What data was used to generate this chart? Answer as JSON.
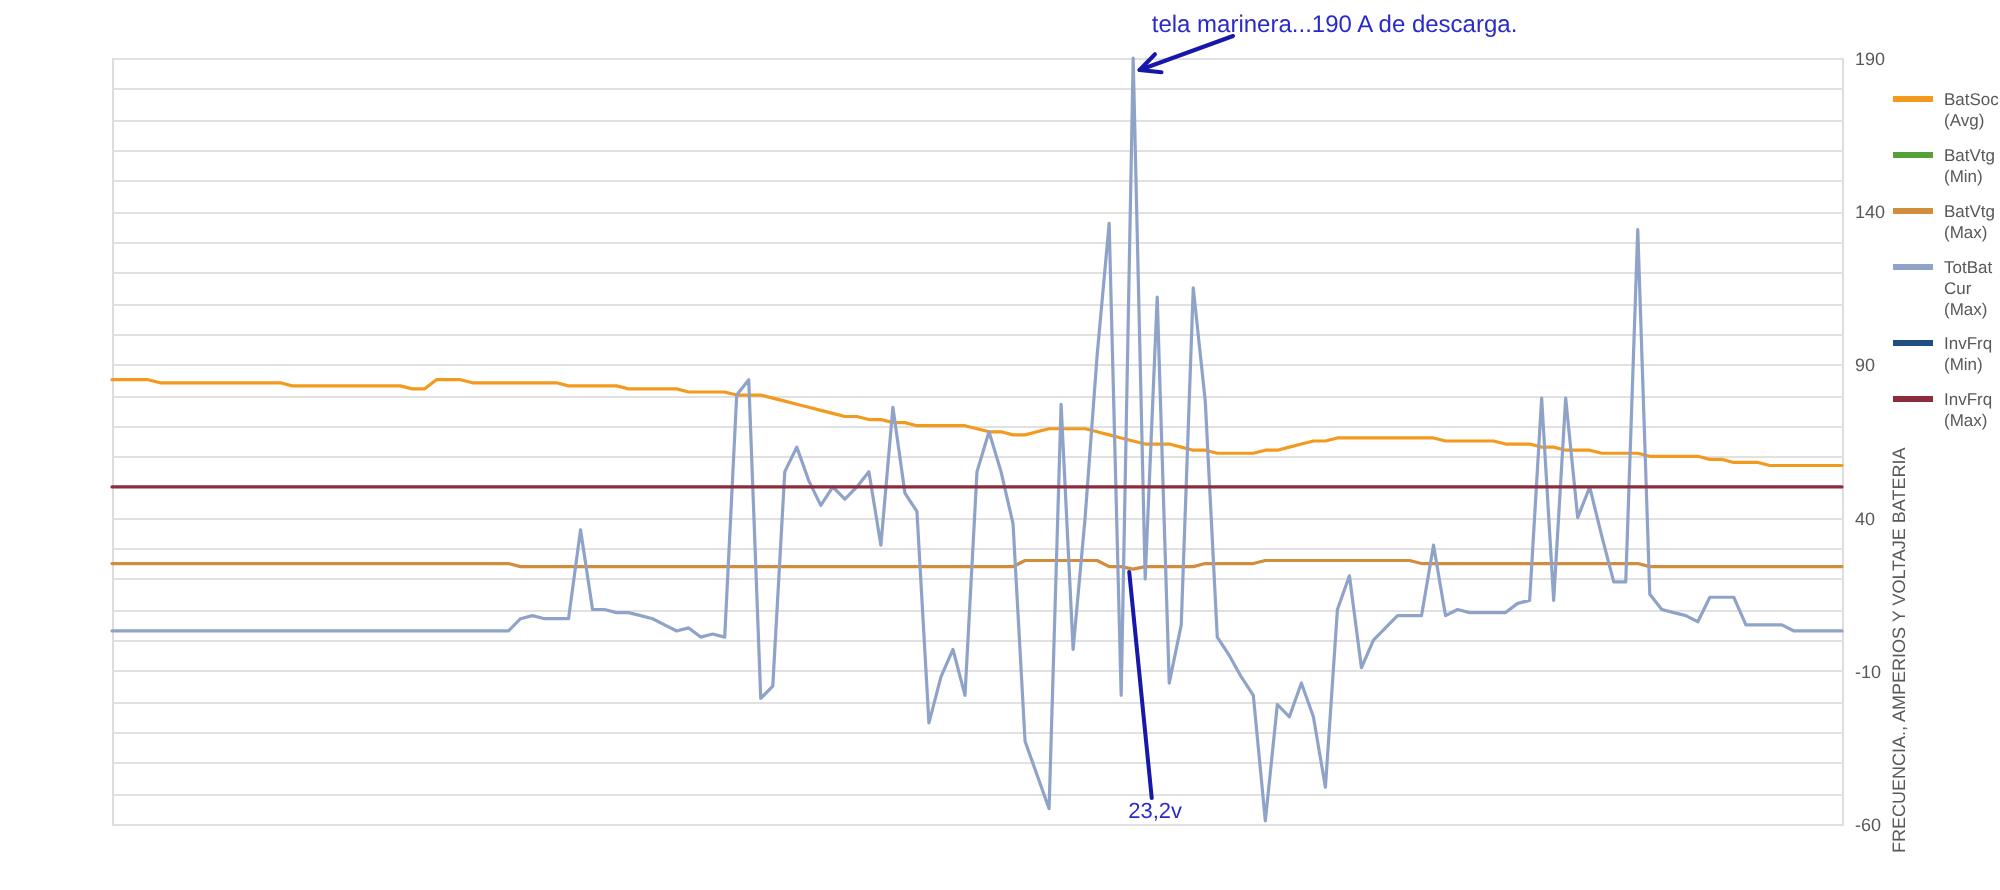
{
  "chart_data": {
    "type": "line",
    "ylabel": "FRECUENCIA., AMPERIOS Y VOLTAJE BATERIA",
    "annotations": [
      "tela marinera...190 A de descarga.",
      "23,2v"
    ],
    "categories": [
      null,
      null,
      null,
      null,
      null,
      null,
      null,
      null,
      null,
      null,
      null,
      null,
      null,
      null,
      null,
      null,
      null,
      null,
      null,
      null,
      null,
      null,
      null,
      null,
      null,
      null,
      null,
      null,
      null,
      null,
      null,
      null,
      null,
      null,
      null,
      null,
      null,
      null,
      null,
      null,
      null,
      null,
      null,
      null,
      null,
      null,
      null,
      null,
      null,
      null,
      null,
      null,
      null,
      null,
      null,
      null,
      null,
      null,
      null,
      null,
      null,
      null,
      null,
      null,
      null,
      null,
      null,
      null,
      null,
      null,
      null,
      null,
      null,
      null,
      null,
      null,
      null,
      null,
      null,
      null,
      null,
      null,
      null,
      null,
      null,
      null,
      null,
      null,
      null,
      null,
      null,
      null,
      null,
      null,
      null,
      null,
      null,
      null,
      null,
      null,
      null,
      null,
      null,
      null,
      null,
      null,
      null,
      null,
      null,
      null,
      null,
      null,
      null,
      null,
      null,
      null,
      null,
      null,
      null,
      null,
      null,
      null,
      null,
      null,
      null,
      null,
      null,
      null,
      null,
      null,
      null,
      null,
      null,
      null,
      null,
      null,
      null,
      null,
      null,
      null,
      null,
      null,
      null,
      null,
      null
    ],
    "ylim": [
      -60,
      190
    ],
    "yticks": [
      -60,
      {
        "value": -50,
        "label": null
      },
      {
        "value": -40,
        "label": null
      },
      {
        "value": -30,
        "label": null
      },
      {
        "value": -20,
        "label": null
      },
      -10,
      {
        "value": 0,
        "label": null
      },
      {
        "value": 10,
        "label": null
      },
      {
        "value": 20,
        "label": null
      },
      {
        "value": 30,
        "label": null
      },
      40,
      {
        "value": 60,
        "label": null
      },
      {
        "value": 70,
        "label": null
      },
      {
        "value": 80,
        "label": null
      },
      90,
      {
        "value": 100,
        "label": null
      },
      {
        "value": 110,
        "label": null
      },
      {
        "value": 120,
        "label": null
      },
      {
        "value": 130,
        "label": null
      },
      140,
      {
        "value": 150,
        "label": null
      },
      {
        "value": 160,
        "label": null
      },
      {
        "value": 170,
        "label": null
      },
      {
        "value": 180,
        "label": null
      },
      190
    ],
    "grid": "y",
    "legend": "right",
    "tick_labels": "y",
    "series": [
      {
        "name": "BatSoc (Avg)",
        "color": "#f39a1e",
        "values": [
          85,
          85,
          85,
          85,
          84,
          84,
          84,
          84,
          84,
          84,
          84,
          84,
          84,
          84,
          84,
          83,
          83,
          83,
          83,
          83,
          83,
          83,
          83,
          83,
          83,
          82,
          82,
          85,
          85,
          85,
          84,
          84,
          84,
          84,
          84,
          84,
          84,
          84,
          83,
          83,
          83,
          83,
          83,
          82,
          82,
          82,
          82,
          82,
          81,
          81,
          81,
          81,
          80,
          80,
          80,
          79,
          78,
          77,
          76,
          75,
          74,
          73,
          73,
          72,
          72,
          71,
          71,
          70,
          70,
          70,
          70,
          70,
          69,
          68,
          68,
          67,
          67,
          68,
          69,
          69,
          69,
          69,
          68,
          67,
          66,
          65,
          64,
          64,
          64,
          63,
          62,
          62,
          61,
          61,
          61,
          61,
          62,
          62,
          63,
          64,
          65,
          65,
          66,
          66,
          66,
          66,
          66,
          66,
          66,
          66,
          66,
          65,
          65,
          65,
          65,
          65,
          64,
          64,
          64,
          63,
          63,
          62,
          62,
          62,
          61,
          61,
          61,
          61,
          60,
          60,
          60,
          60,
          60,
          59,
          59,
          58,
          58,
          58,
          57,
          57,
          57,
          57,
          57,
          57,
          57
        ]
      },
      {
        "name": "BatVtg (Min)",
        "color": "#54a13a",
        "values": [
          null,
          null,
          null,
          null,
          null,
          null,
          null,
          null,
          null,
          null,
          null,
          null,
          null,
          null,
          null,
          null,
          null,
          null,
          null,
          null,
          null,
          null,
          null,
          null,
          null,
          null,
          null,
          null,
          null,
          null,
          null,
          null,
          null,
          null,
          null,
          null,
          null,
          null,
          null,
          null,
          null,
          null,
          null,
          null,
          null,
          null,
          null,
          null,
          null,
          null,
          null,
          null,
          null,
          null,
          null,
          null,
          null,
          null,
          null,
          null,
          null,
          null,
          null,
          null,
          null,
          null,
          null,
          null,
          null,
          null,
          null,
          null,
          null,
          null,
          null,
          null,
          null,
          null,
          null,
          null,
          null,
          null,
          null,
          null,
          null,
          null,
          null,
          null,
          null,
          null,
          null,
          null,
          null,
          null,
          null,
          null,
          null,
          null,
          null,
          null,
          null,
          null,
          null,
          null,
          null,
          null,
          null,
          null,
          null,
          null,
          null,
          null,
          null,
          null,
          null,
          null,
          null,
          null,
          null,
          null,
          null,
          null,
          null,
          null,
          null,
          null,
          null,
          null,
          null,
          null,
          null,
          null,
          null,
          null,
          null,
          null,
          null,
          null,
          null,
          null,
          null,
          null,
          null,
          null,
          null
        ]
      },
      {
        "name": "BatVtg (Max)",
        "color": "#d18c3c",
        "values": [
          25,
          25,
          25,
          25,
          25,
          25,
          25,
          25,
          25,
          25,
          25,
          25,
          25,
          25,
          25,
          25,
          25,
          25,
          25,
          25,
          25,
          25,
          25,
          25,
          25,
          25,
          25,
          25,
          25,
          25,
          25,
          25,
          25,
          25,
          24,
          24,
          24,
          24,
          24,
          24,
          24,
          24,
          24,
          24,
          24,
          24,
          24,
          24,
          24,
          24,
          24,
          24,
          24,
          24,
          24,
          24,
          24,
          24,
          24,
          24,
          24,
          24,
          24,
          24,
          24,
          24,
          24,
          24,
          24,
          24,
          24,
          24,
          24,
          24,
          24,
          24,
          26,
          26,
          26,
          26,
          26,
          26,
          26,
          24,
          24,
          23.2,
          24,
          24,
          24,
          24,
          24,
          25,
          25,
          25,
          25,
          25,
          26,
          26,
          26,
          26,
          26,
          26,
          26,
          26,
          26,
          26,
          26,
          26,
          26,
          25,
          25,
          25,
          25,
          25,
          25,
          25,
          25,
          25,
          25,
          25,
          25,
          25,
          25,
          25,
          25,
          25,
          25,
          25,
          24,
          24,
          24,
          24,
          24,
          24,
          24,
          24,
          24,
          24,
          24,
          24,
          24,
          24,
          24,
          24,
          24
        ]
      },
      {
        "name": "TotBat Cur (Max)",
        "color": "#8fa3c9",
        "values": [
          3,
          3,
          3,
          3,
          3,
          3,
          3,
          3,
          3,
          3,
          3,
          3,
          3,
          3,
          3,
          3,
          3,
          3,
          3,
          3,
          3,
          3,
          3,
          3,
          3,
          3,
          3,
          3,
          3,
          3,
          3,
          3,
          3,
          3,
          7,
          8,
          7,
          7,
          7,
          36,
          10,
          10,
          9,
          9,
          8,
          7,
          5,
          3,
          4,
          1,
          2,
          1,
          80,
          85,
          -19,
          -15,
          55,
          63,
          52,
          44,
          50,
          46,
          50,
          55,
          31,
          76,
          48,
          42,
          -27,
          -12,
          -3,
          -18,
          55,
          68,
          55,
          38,
          -33,
          -44,
          -55,
          77,
          -3,
          40,
          93,
          136,
          -18,
          190,
          20,
          112,
          -14,
          5,
          115,
          78,
          1,
          -5,
          -12,
          -18,
          -59,
          -21,
          -25,
          -14,
          -25,
          -48,
          10,
          21,
          -9,
          0,
          4,
          8,
          8,
          8,
          31,
          8,
          10,
          9,
          9,
          9,
          9,
          12,
          13,
          79,
          13,
          79,
          40,
          50,
          34,
          19,
          19,
          134,
          15,
          10,
          9,
          8,
          6,
          14,
          14,
          14,
          5,
          5,
          5,
          5,
          3,
          3,
          3,
          3,
          3
        ]
      },
      {
        "name": "InvFrq (Min)",
        "color": "#1f4f7f",
        "values": [
          null,
          null,
          null,
          null,
          null,
          null,
          null,
          null,
          null,
          null,
          null,
          null,
          null,
          null,
          null,
          null,
          null,
          null,
          null,
          null,
          null,
          null,
          null,
          null,
          null,
          null,
          null,
          null,
          null,
          null,
          null,
          null,
          null,
          null,
          null,
          null,
          null,
          null,
          null,
          null,
          null,
          null,
          null,
          null,
          null,
          null,
          null,
          null,
          null,
          null,
          null,
          null,
          null,
          null,
          null,
          null,
          null,
          null,
          null,
          null,
          null,
          null,
          null,
          null,
          null,
          null,
          null,
          null,
          null,
          null,
          null,
          null,
          null,
          null,
          null,
          null,
          null,
          null,
          null,
          null,
          null,
          null,
          null,
          null,
          null,
          null,
          null,
          null,
          null,
          null,
          null,
          null,
          null,
          null,
          null,
          null,
          null,
          null,
          null,
          null,
          null,
          null,
          null,
          null,
          null,
          null,
          null,
          null,
          null,
          null,
          null,
          null,
          null,
          null,
          null,
          null,
          null,
          null,
          null,
          null,
          null,
          null,
          null,
          null,
          null,
          null,
          null,
          null,
          null,
          null,
          null,
          null,
          null,
          null,
          null,
          null,
          null,
          null,
          null,
          null,
          null,
          null,
          null,
          null,
          null
        ]
      },
      {
        "name": "InvFrq (Max)",
        "color": "#8c2d3e",
        "values": [
          50,
          50,
          50,
          50,
          50,
          50,
          50,
          50,
          50,
          50,
          50,
          50,
          50,
          50,
          50,
          50,
          50,
          50,
          50,
          50,
          50,
          50,
          50,
          50,
          50,
          50,
          50,
          50,
          50,
          50,
          50,
          50,
          50,
          50,
          50,
          50,
          50,
          50,
          50,
          50,
          50,
          50,
          50,
          50,
          50,
          50,
          50,
          50,
          50,
          50,
          50,
          50,
          50,
          50,
          50,
          50,
          50,
          50,
          50,
          50,
          50,
          50,
          50,
          50,
          50,
          50,
          50,
          50,
          50,
          50,
          50,
          50,
          50,
          50,
          50,
          50,
          50,
          50,
          50,
          50,
          50,
          50,
          50,
          50,
          50,
          50,
          50,
          50,
          50,
          50,
          50,
          50,
          50,
          50,
          50,
          50,
          50,
          50,
          50,
          50,
          50,
          50,
          50,
          50,
          50,
          50,
          50,
          50,
          50,
          50,
          50,
          50,
          50,
          50,
          50,
          50,
          50,
          50,
          50,
          50,
          50,
          50,
          50,
          50,
          50,
          50,
          50,
          50,
          50,
          50,
          50,
          50,
          50,
          50,
          50,
          50,
          50,
          50,
          50,
          50,
          50,
          50,
          50,
          50,
          50
        ]
      }
    ]
  }
}
